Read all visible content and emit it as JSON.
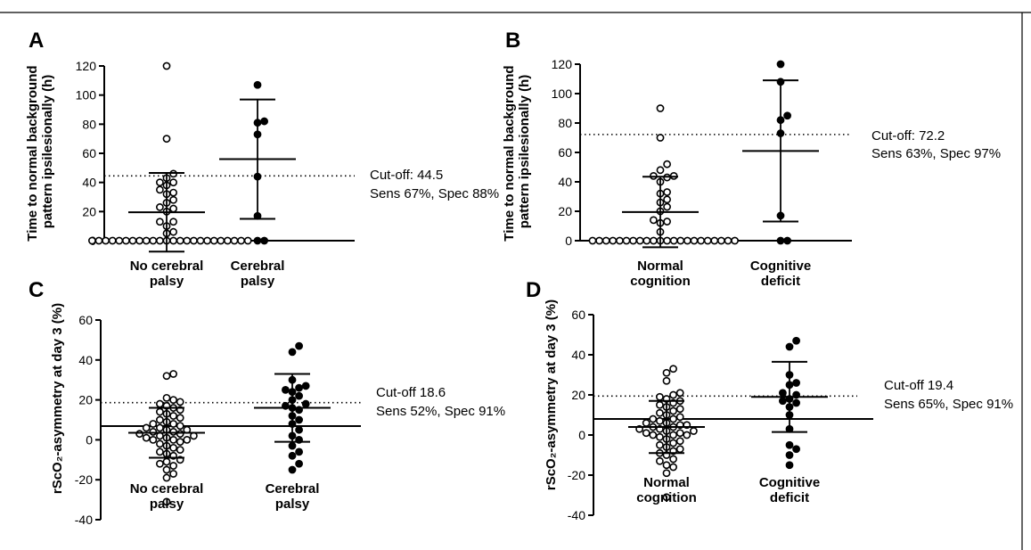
{
  "figure": {
    "panels": [
      {
        "id": "A",
        "letter": "A",
        "ylabel_lines": [
          "Time to normal background",
          "pattern ipsilesionally (h)"
        ],
        "cutoff_text": "Cut-off: 44.5",
        "sens_spec_text": "Sens 67%, Spec 88%"
      },
      {
        "id": "B",
        "letter": "B",
        "ylabel_lines": [
          "Time to normal background",
          "pattern ipsilesionally (h)"
        ],
        "cutoff_text": "Cut-off: 72.2",
        "sens_spec_text": "Sens 63%, Spec 97%"
      },
      {
        "id": "C",
        "letter": "C",
        "ylabel_lines": [
          "rScO₂-asymmetry at day 3 (%)"
        ],
        "cutoff_text": "Cut-off 18.6",
        "sens_spec_text": "Sens 52%, Spec 91%"
      },
      {
        "id": "D",
        "letter": "D",
        "ylabel_lines": [
          "rScO₂-asymmetry at day 3 (%)"
        ],
        "cutoff_text": "Cut-off 19.4",
        "sens_spec_text": "Sens 65%, Spec 91%"
      }
    ]
  },
  "chart_data": [
    {
      "type": "scatter",
      "panel": "A",
      "ylim": [
        0,
        120
      ],
      "yticks": [
        0,
        20,
        40,
        60,
        80,
        100,
        120
      ],
      "cutoff": 44.5,
      "groups": [
        {
          "label_lines": [
            "No cerebral",
            "palsy"
          ],
          "marker": "open",
          "mean": 19.5,
          "sd": 27,
          "values": [
            0,
            0,
            0,
            0,
            0,
            0,
            0,
            0,
            0,
            0,
            0,
            0,
            0,
            0,
            0,
            0,
            0,
            0,
            0,
            0,
            0,
            0,
            0,
            0,
            5,
            6,
            10,
            13,
            13,
            20,
            22,
            23,
            26,
            28,
            32,
            33,
            35,
            38,
            40,
            40,
            43,
            46,
            70,
            120
          ]
        },
        {
          "label_lines": [
            "Cerebral",
            "palsy"
          ],
          "marker": "filled",
          "mean": 56,
          "sd": 41,
          "values": [
            0,
            0,
            17,
            44,
            73,
            81,
            82,
            107
          ]
        }
      ]
    },
    {
      "type": "scatter",
      "panel": "B",
      "ylim": [
        0,
        120
      ],
      "yticks": [
        0,
        20,
        40,
        60,
        80,
        100,
        120
      ],
      "cutoff": 72.2,
      "groups": [
        {
          "label_lines": [
            "Normal",
            "cognition"
          ],
          "marker": "open",
          "mean": 19.5,
          "sd": 24,
          "values": [
            0,
            0,
            0,
            0,
            0,
            0,
            0,
            0,
            0,
            0,
            0,
            0,
            0,
            0,
            0,
            0,
            0,
            0,
            0,
            0,
            0,
            0,
            6,
            12,
            13,
            14,
            20,
            23,
            26,
            28,
            32,
            33,
            40,
            43,
            44,
            44,
            48,
            52,
            70,
            90
          ]
        },
        {
          "label_lines": [
            "Cognitive",
            "deficit"
          ],
          "marker": "filled",
          "mean": 61,
          "sd": 48,
          "values": [
            0,
            0,
            17,
            73,
            82,
            85,
            108,
            120
          ]
        }
      ]
    },
    {
      "type": "scatter",
      "panel": "C",
      "ylim": [
        -40,
        60
      ],
      "yticks": [
        -40,
        -20,
        0,
        20,
        40,
        60
      ],
      "cutoff": 18.6,
      "groups": [
        {
          "label_lines": [
            "No cerebral",
            "palsy"
          ],
          "marker": "open",
          "mean": 3.5,
          "sd": 12.5,
          "values": [
            -31,
            -19,
            -17,
            -15,
            -13,
            -12,
            -11,
            -10,
            -8,
            -7,
            -6,
            -5,
            -4,
            -3,
            -2,
            -1,
            0,
            0,
            0,
            1,
            1,
            2,
            2,
            3,
            3,
            4,
            4,
            5,
            5,
            6,
            6,
            7,
            8,
            8,
            9,
            10,
            11,
            12,
            13,
            14,
            15,
            16,
            17,
            18,
            19,
            20,
            21,
            32,
            33
          ]
        },
        {
          "label_lines": [
            "Cerebral",
            "palsy"
          ],
          "marker": "filled",
          "mean": 16,
          "sd": 17,
          "values": [
            -15,
            -12,
            -8,
            -6,
            -3,
            0,
            2,
            5,
            8,
            10,
            12,
            15,
            16,
            17,
            18,
            20,
            22,
            24,
            25,
            26,
            27,
            30,
            44,
            47
          ]
        }
      ]
    },
    {
      "type": "scatter",
      "panel": "D",
      "ylim": [
        -40,
        60
      ],
      "yticks": [
        -40,
        -20,
        0,
        20,
        40,
        60
      ],
      "cutoff": 19.4,
      "groups": [
        {
          "label_lines": [
            "Normal",
            "cognition"
          ],
          "marker": "open",
          "mean": 4,
          "sd": 13,
          "values": [
            -31,
            -19,
            -16,
            -15,
            -13,
            -12,
            -10,
            -9,
            -8,
            -7,
            -6,
            -5,
            -4,
            -3,
            -2,
            -1,
            0,
            0,
            0,
            1,
            1,
            2,
            2,
            3,
            3,
            4,
            4,
            5,
            5,
            6,
            6,
            7,
            8,
            8,
            9,
            10,
            11,
            12,
            13,
            14,
            15,
            16,
            17,
            18,
            19,
            20,
            21,
            27,
            31,
            33
          ]
        },
        {
          "label_lines": [
            "Cognitive",
            "deficit"
          ],
          "marker": "filled",
          "mean": 19,
          "sd": 17.5,
          "values": [
            -15,
            -10,
            -7,
            -5,
            3,
            10,
            14,
            16,
            17,
            18,
            20,
            21,
            25,
            26,
            30,
            44,
            47
          ]
        }
      ]
    }
  ]
}
